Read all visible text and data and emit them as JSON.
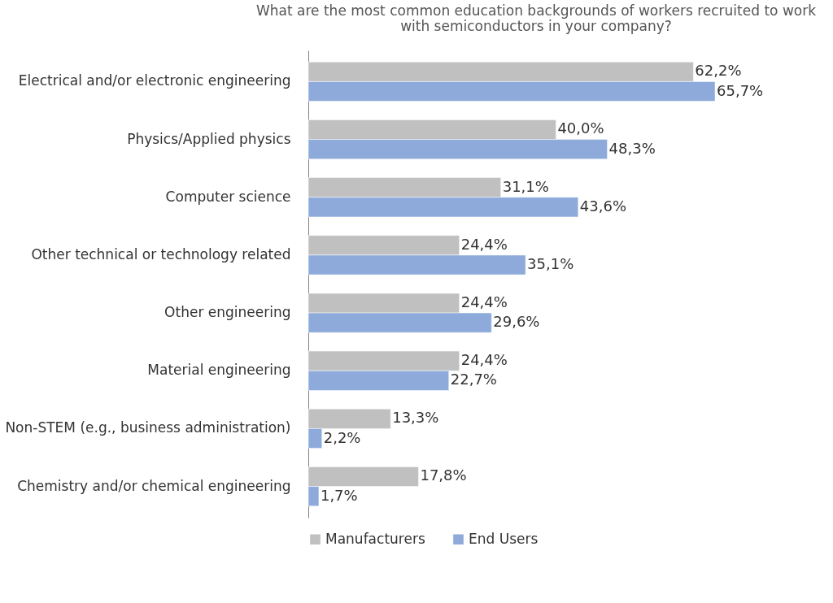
{
  "chart_data": {
    "type": "bar",
    "orientation": "horizontal",
    "title": "What are the most common education backgrounds of workers recruited to work\nwith semiconductors in your company?",
    "categories": [
      "Electrical and/or electronic engineering",
      "Physics/Applied physics",
      "Computer science",
      "Other technical or technology related",
      "Other engineering",
      "Material engineering",
      "Non-STEM (e.g., business administration)",
      "Chemistry and/or chemical engineering"
    ],
    "series": [
      {
        "name": "Manufacturers",
        "color": "#c0c0c0",
        "values": [
          62.2,
          40.0,
          31.1,
          24.4,
          24.4,
          24.4,
          13.3,
          17.8
        ],
        "value_labels": [
          "62,2%",
          "40,0%",
          "31,1%",
          "24,4%",
          "24,4%",
          "24,4%",
          "13,3%",
          "17,8%"
        ]
      },
      {
        "name": "End Users",
        "color": "#8eaadb",
        "values": [
          65.7,
          48.3,
          43.6,
          35.1,
          29.6,
          22.7,
          2.2,
          1.7
        ],
        "value_labels": [
          "65,7%",
          "48,3%",
          "43,6%",
          "35,1%",
          "29,6%",
          "22,7%",
          "2,2%",
          "1,7%"
        ]
      }
    ],
    "legend": "bottom",
    "tick_labels": "y"
  }
}
